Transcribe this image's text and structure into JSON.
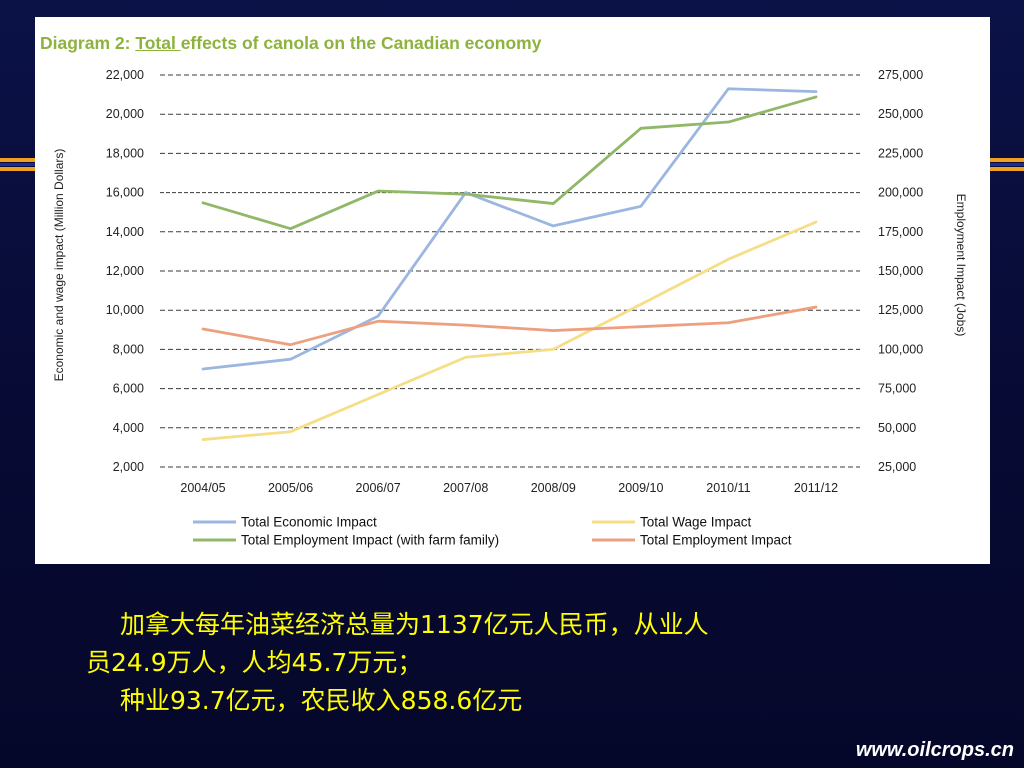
{
  "slide": {
    "background_color": "#080c3a",
    "accent_color": "#f0a020",
    "caption_lines": [
      "加拿大每年油菜经济总量为1137亿元人民币，从业人",
      "员24.9万人，人均45.7万元；",
      "种业93.7亿元，农民收入858.6亿元"
    ],
    "website": "www.oilcrops.cn"
  },
  "chart_data": {
    "type": "line",
    "title_parts": [
      "Diagram 2: ",
      "Total ",
      "effects of canola on the Canadian economy"
    ],
    "categories": [
      "2004/05",
      "2005/06",
      "2006/07",
      "2007/08",
      "2008/09",
      "2009/10",
      "2010/11",
      "2011/12"
    ],
    "ylabel": "Economic and wage impact (Million Dollars)",
    "y2label": "Employment Impact (Jobs)",
    "ylim": [
      2000,
      22000
    ],
    "y2lim": [
      25000,
      275000
    ],
    "yticks": [
      "22,000",
      "20,000",
      "18,000",
      "16,000",
      "14,000",
      "12,000",
      "10,000",
      "8,000",
      "6,000",
      "4,000",
      "2,000"
    ],
    "y2ticks": [
      "275,000",
      "250,000",
      "225,000",
      "200,000",
      "175,000",
      "150,000",
      "125,000",
      "100,000",
      "75,000",
      "50,000",
      "25,000"
    ],
    "grid": "horizontal dashed",
    "legend_position": "bottom",
    "series": [
      {
        "name": "Total Economic Impact",
        "axis": "left",
        "color": "#9bb7e0",
        "values": [
          7000,
          7500,
          9700,
          16000,
          14300,
          15300,
          21300,
          21150
        ]
      },
      {
        "name": "Total Wage Impact",
        "axis": "left",
        "color": "#f5de86",
        "values": [
          3400,
          3800,
          5700,
          7600,
          8000,
          10300,
          12600,
          14500
        ]
      },
      {
        "name": "Total Employment Impact (with farm family)",
        "axis": "right",
        "color": "#90b868",
        "values": [
          193500,
          177000,
          201000,
          199000,
          193000,
          241000,
          245000,
          261000
        ]
      },
      {
        "name": "Total Employment Impact",
        "axis": "right",
        "color": "#eda080",
        "values": [
          113000,
          103000,
          118000,
          115500,
          112000,
          114500,
          117000,
          127000
        ]
      }
    ]
  }
}
